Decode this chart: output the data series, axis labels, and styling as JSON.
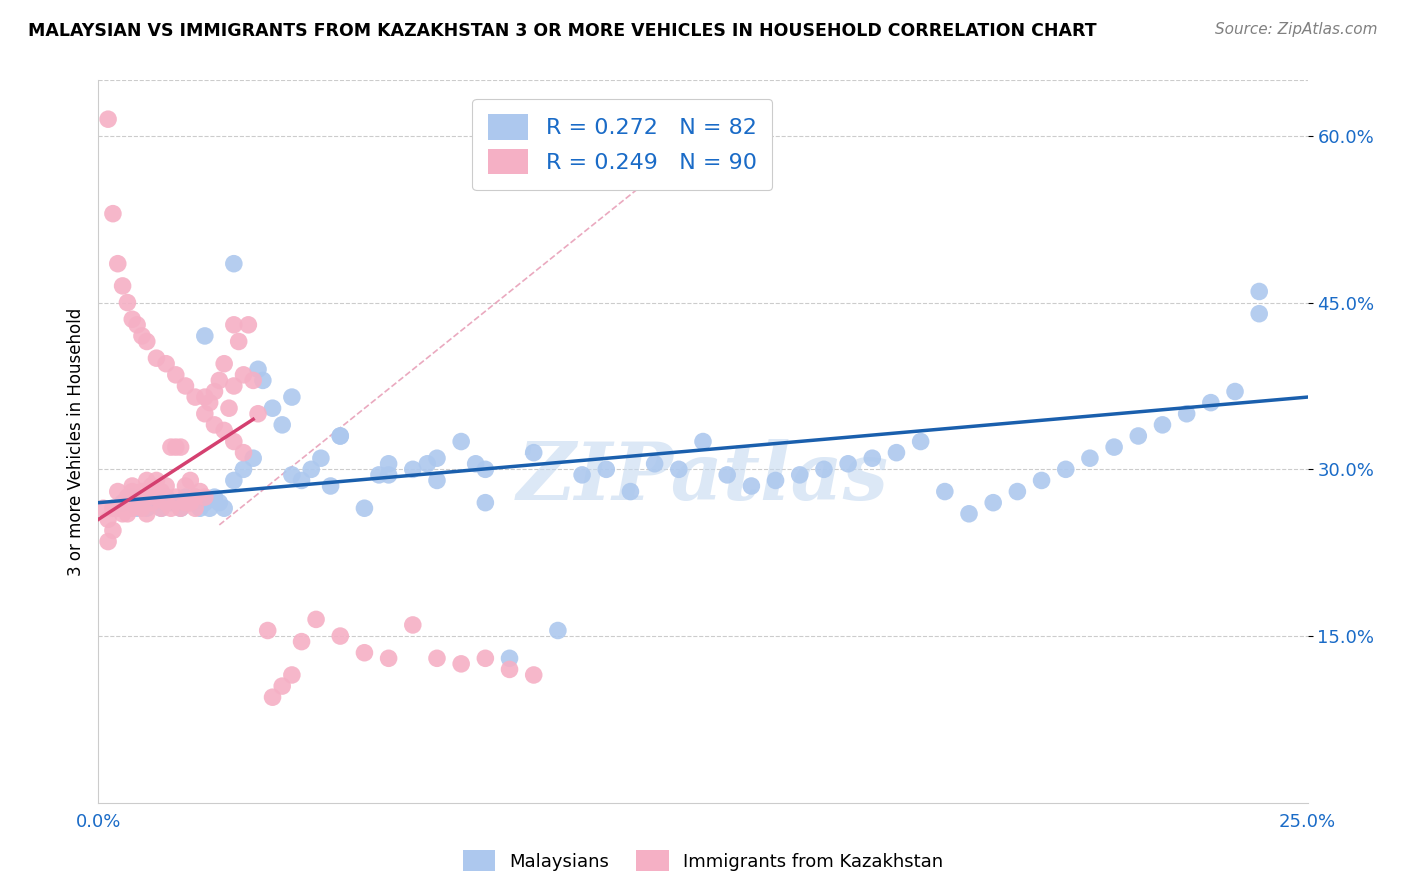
{
  "title": "MALAYSIAN VS IMMIGRANTS FROM KAZAKHSTAN 3 OR MORE VEHICLES IN HOUSEHOLD CORRELATION CHART",
  "source": "Source: ZipAtlas.com",
  "ylabel": "3 or more Vehicles in Household",
  "xmin": 0.0,
  "xmax": 0.25,
  "ymin": 0.0,
  "ymax": 0.65,
  "x_tick_positions": [
    0.0,
    0.05,
    0.1,
    0.15,
    0.2,
    0.25
  ],
  "x_tick_labels": [
    "0.0%",
    "",
    "",
    "",
    "",
    "25.0%"
  ],
  "y_tick_positions": [
    0.15,
    0.3,
    0.45,
    0.6
  ],
  "y_tick_labels": [
    "15.0%",
    "30.0%",
    "45.0%",
    "60.0%"
  ],
  "legend_labels": [
    "Malaysians",
    "Immigrants from Kazakhstan"
  ],
  "blue_R": "0.272",
  "blue_N": "82",
  "pink_R": "0.249",
  "pink_N": "90",
  "blue_color": "#adc8ee",
  "pink_color": "#f5b0c5",
  "blue_line_color": "#1a5fad",
  "pink_line_color": "#d44070",
  "diag_line_color": "#e8a0b8",
  "watermark": "ZIPatlas",
  "blue_points_x": [
    0.005,
    0.007,
    0.008,
    0.01,
    0.011,
    0.012,
    0.013,
    0.014,
    0.015,
    0.016,
    0.017,
    0.018,
    0.019,
    0.02,
    0.021,
    0.022,
    0.023,
    0.024,
    0.025,
    0.026,
    0.028,
    0.03,
    0.032,
    0.034,
    0.036,
    0.038,
    0.04,
    0.042,
    0.044,
    0.046,
    0.048,
    0.05,
    0.055,
    0.058,
    0.06,
    0.065,
    0.068,
    0.07,
    0.075,
    0.078,
    0.08,
    0.085,
    0.09,
    0.095,
    0.1,
    0.105,
    0.11,
    0.115,
    0.12,
    0.125,
    0.13,
    0.135,
    0.14,
    0.145,
    0.15,
    0.155,
    0.16,
    0.165,
    0.17,
    0.175,
    0.18,
    0.185,
    0.19,
    0.195,
    0.2,
    0.205,
    0.21,
    0.215,
    0.22,
    0.225,
    0.23,
    0.235,
    0.24,
    0.022,
    0.028,
    0.033,
    0.04,
    0.05,
    0.06,
    0.07,
    0.08,
    0.24
  ],
  "blue_points_y": [
    0.27,
    0.275,
    0.265,
    0.265,
    0.275,
    0.27,
    0.265,
    0.275,
    0.27,
    0.27,
    0.265,
    0.275,
    0.27,
    0.275,
    0.265,
    0.27,
    0.265,
    0.275,
    0.27,
    0.265,
    0.29,
    0.3,
    0.31,
    0.38,
    0.355,
    0.34,
    0.295,
    0.29,
    0.3,
    0.31,
    0.285,
    0.33,
    0.265,
    0.295,
    0.295,
    0.3,
    0.305,
    0.31,
    0.325,
    0.305,
    0.3,
    0.13,
    0.315,
    0.155,
    0.295,
    0.3,
    0.28,
    0.305,
    0.3,
    0.325,
    0.295,
    0.285,
    0.29,
    0.295,
    0.3,
    0.305,
    0.31,
    0.315,
    0.325,
    0.28,
    0.26,
    0.27,
    0.28,
    0.29,
    0.3,
    0.31,
    0.32,
    0.33,
    0.34,
    0.35,
    0.36,
    0.37,
    0.44,
    0.42,
    0.485,
    0.39,
    0.365,
    0.33,
    0.305,
    0.29,
    0.27,
    0.46
  ],
  "pink_points_x": [
    0.001,
    0.002,
    0.002,
    0.003,
    0.003,
    0.004,
    0.004,
    0.005,
    0.005,
    0.006,
    0.006,
    0.007,
    0.007,
    0.007,
    0.008,
    0.008,
    0.009,
    0.009,
    0.01,
    0.01,
    0.01,
    0.011,
    0.011,
    0.012,
    0.012,
    0.013,
    0.013,
    0.014,
    0.014,
    0.015,
    0.015,
    0.016,
    0.016,
    0.017,
    0.017,
    0.018,
    0.018,
    0.019,
    0.019,
    0.02,
    0.02,
    0.021,
    0.022,
    0.022,
    0.023,
    0.024,
    0.025,
    0.026,
    0.027,
    0.028,
    0.028,
    0.029,
    0.03,
    0.031,
    0.032,
    0.033,
    0.035,
    0.036,
    0.038,
    0.04,
    0.042,
    0.045,
    0.05,
    0.055,
    0.06,
    0.065,
    0.07,
    0.075,
    0.08,
    0.085,
    0.09,
    0.002,
    0.003,
    0.004,
    0.005,
    0.006,
    0.007,
    0.008,
    0.009,
    0.01,
    0.012,
    0.014,
    0.016,
    0.018,
    0.02,
    0.022,
    0.024,
    0.026,
    0.028,
    0.03
  ],
  "pink_points_y": [
    0.265,
    0.235,
    0.255,
    0.245,
    0.265,
    0.265,
    0.28,
    0.26,
    0.265,
    0.26,
    0.275,
    0.265,
    0.28,
    0.285,
    0.27,
    0.275,
    0.265,
    0.28,
    0.26,
    0.275,
    0.29,
    0.27,
    0.285,
    0.275,
    0.29,
    0.265,
    0.28,
    0.27,
    0.285,
    0.265,
    0.32,
    0.275,
    0.32,
    0.265,
    0.32,
    0.285,
    0.27,
    0.29,
    0.27,
    0.275,
    0.265,
    0.28,
    0.275,
    0.365,
    0.36,
    0.37,
    0.38,
    0.395,
    0.355,
    0.43,
    0.375,
    0.415,
    0.385,
    0.43,
    0.38,
    0.35,
    0.155,
    0.095,
    0.105,
    0.115,
    0.145,
    0.165,
    0.15,
    0.135,
    0.13,
    0.16,
    0.13,
    0.125,
    0.13,
    0.12,
    0.115,
    0.615,
    0.53,
    0.485,
    0.465,
    0.45,
    0.435,
    0.43,
    0.42,
    0.415,
    0.4,
    0.395,
    0.385,
    0.375,
    0.365,
    0.35,
    0.34,
    0.335,
    0.325,
    0.315
  ]
}
